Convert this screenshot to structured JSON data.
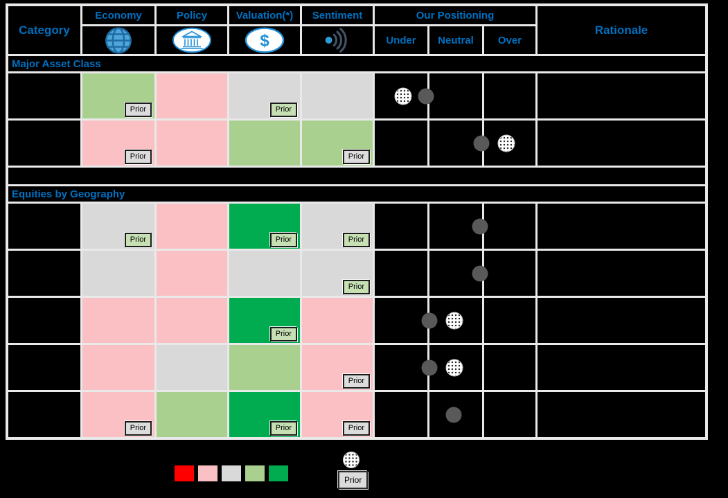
{
  "header": {
    "category": "Category",
    "factors": [
      {
        "label": "Economy",
        "icon": "globe-icon"
      },
      {
        "label": "Policy",
        "icon": "bank-icon"
      },
      {
        "label": "Valuation(*)",
        "icon": "dollar-icon"
      },
      {
        "label": "Sentiment",
        "icon": "signal-icon"
      }
    ],
    "positioning": {
      "label": "Our Positioning",
      "columns": [
        "Under",
        "Neutral",
        "Over"
      ]
    },
    "rationale": "Rationale"
  },
  "colors": {
    "very_negative": "#FE0000",
    "negative": "#FAC0C3",
    "neutral": "#D9D9D9",
    "positive": "#A9D08E",
    "very_positive": "#00AC4F",
    "prior_badge_neutral": "#DCDCDC",
    "prior_badge_positive": "#C6E0B4",
    "accent_blue": "#0070C0",
    "current_dot_gray": "#595959",
    "gridline": "#E9E9E9"
  },
  "prior_label": "Prior",
  "sections": [
    {
      "title": "Major Asset Class",
      "rows": [
        {
          "category": "",
          "cells": [
            {
              "color": "positive",
              "prior": "neutral"
            },
            {
              "color": "negative",
              "prior": null
            },
            {
              "color": "neutral",
              "prior": "positive"
            },
            {
              "color": "neutral",
              "prior": null
            }
          ],
          "positioning": {
            "current_pct": 31.7,
            "prior_pct": 17.8
          },
          "rationale": ""
        },
        {
          "category": "",
          "cells": [
            {
              "color": "negative",
              "prior": "neutral"
            },
            {
              "color": "negative",
              "prior": null
            },
            {
              "color": "positive",
              "prior": null
            },
            {
              "color": "positive",
              "prior": "neutral"
            }
          ],
          "positioning": {
            "current_pct": 66.5,
            "prior_pct": 81.7
          },
          "rationale": ""
        }
      ]
    },
    {
      "title": "Equities by Geography",
      "rows": [
        {
          "category": "",
          "cells": [
            {
              "color": "neutral",
              "prior": "positive"
            },
            {
              "color": "negative",
              "prior": null
            },
            {
              "color": "very_positive",
              "prior": "positive"
            },
            {
              "color": "neutral",
              "prior": "positive"
            }
          ],
          "positioning": {
            "current_pct": 65.5,
            "prior_pct": null
          },
          "rationale": ""
        },
        {
          "category": "",
          "cells": [
            {
              "color": "neutral",
              "prior": null
            },
            {
              "color": "negative",
              "prior": null
            },
            {
              "color": "neutral",
              "prior": null
            },
            {
              "color": "neutral",
              "prior": "positive"
            }
          ],
          "positioning": {
            "current_pct": 65.5,
            "prior_pct": null
          },
          "rationale": ""
        },
        {
          "category": "",
          "cells": [
            {
              "color": "negative",
              "prior": null
            },
            {
              "color": "negative",
              "prior": null
            },
            {
              "color": "very_positive",
              "prior": "positive"
            },
            {
              "color": "negative",
              "prior": null
            }
          ],
          "positioning": {
            "current_pct": 33.9,
            "prior_pct": 49.5
          },
          "rationale": ""
        },
        {
          "category": "",
          "cells": [
            {
              "color": "negative",
              "prior": null
            },
            {
              "color": "neutral",
              "prior": null
            },
            {
              "color": "positive",
              "prior": null
            },
            {
              "color": "negative",
              "prior": "neutral"
            }
          ],
          "positioning": {
            "current_pct": 33.9,
            "prior_pct": 49.5
          },
          "rationale": ""
        },
        {
          "category": "",
          "cells": [
            {
              "color": "negative",
              "prior": "neutral"
            },
            {
              "color": "positive",
              "prior": null
            },
            {
              "color": "very_positive",
              "prior": "positive"
            },
            {
              "color": "negative",
              "prior": "neutral"
            }
          ],
          "positioning": {
            "current_pct": 49.1,
            "prior_pct": null
          },
          "rationale": ""
        }
      ]
    }
  ],
  "legend": {
    "scale_swatches": [
      "very_negative",
      "negative",
      "neutral",
      "positive",
      "very_positive"
    ],
    "prior_marker_label": "Prior"
  }
}
